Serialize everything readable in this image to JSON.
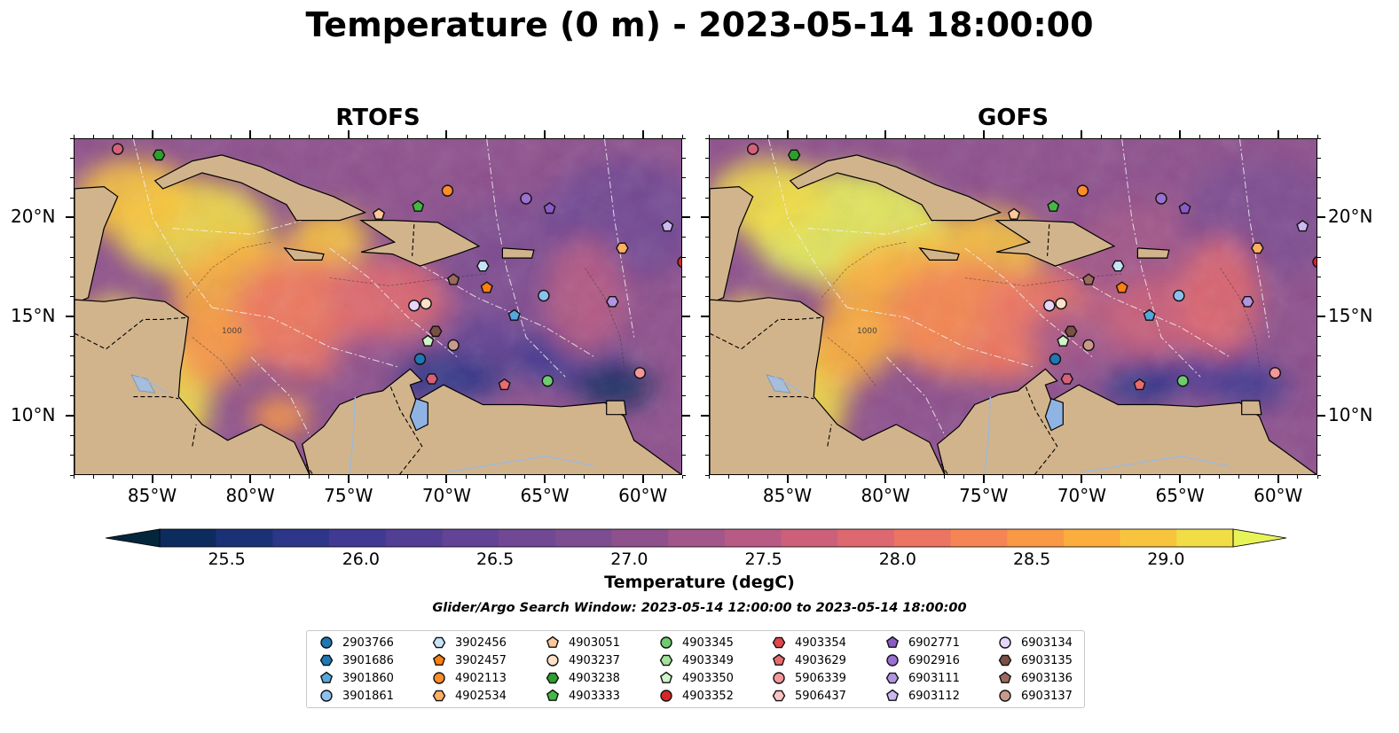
{
  "title": "Temperature (0 m) - 2023-05-14 18:00:00",
  "panels": [
    {
      "title": "RTOFS",
      "variant": "rtofs"
    },
    {
      "title": "GOFS",
      "variant": "gofs"
    }
  ],
  "map_extent": {
    "lon": [
      -89,
      -58
    ],
    "lat": [
      7,
      24
    ]
  },
  "lon_ticks": [
    {
      "lon": -85,
      "label": "85°W"
    },
    {
      "lon": -80,
      "label": "80°W"
    },
    {
      "lon": -75,
      "label": "75°W"
    },
    {
      "lon": -70,
      "label": "70°W"
    },
    {
      "lon": -65,
      "label": "65°W"
    },
    {
      "lon": -60,
      "label": "60°W"
    }
  ],
  "lat_ticks": [
    {
      "lat": 20,
      "label": "20°N"
    },
    {
      "lat": 15,
      "label": "15°N"
    },
    {
      "lat": 10,
      "label": "10°N"
    }
  ],
  "colorbar": {
    "label": "Temperature (degC)",
    "min": 25.25,
    "max": 29.25,
    "step": 0.25,
    "ticks": [
      "25.5",
      "26.0",
      "26.5",
      "27.0",
      "27.5",
      "28.0",
      "28.5",
      "29.0"
    ],
    "colors": [
      "#04263d",
      "#0d2c5e",
      "#1b3176",
      "#2d3689",
      "#403a92",
      "#533e95",
      "#634395",
      "#714893",
      "#7d4d91",
      "#8e518e",
      "#a3568a",
      "#b75b84",
      "#cc607a",
      "#de6870",
      "#ec7463",
      "#f58554",
      "#f99845",
      "#fbad3d",
      "#f8c43e",
      "#f1dd46",
      "#e8f35a"
    ]
  },
  "contour_label": "1000",
  "search_window": "Glider/Argo Search Window: 2023-05-14 12:00:00 to 2023-05-14 18:00:00",
  "floats": [
    {
      "id": "2903766",
      "marker": "circle",
      "color": "#1f77b4",
      "lon": -71.4,
      "lat": 12.9
    },
    {
      "id": "3901686",
      "marker": "hexagon",
      "color": "#1f77b4",
      "lon": null,
      "lat": null
    },
    {
      "id": "3901860",
      "marker": "pentagon",
      "color": "#56a8dc",
      "lon": -66.6,
      "lat": 15.1
    },
    {
      "id": "3901861",
      "marker": "circle",
      "color": "#8cc1ee",
      "lon": -65.1,
      "lat": 16.1
    },
    {
      "id": "3902456",
      "marker": "hexagon",
      "color": "#c6e3f8",
      "lon": -68.2,
      "lat": 17.6
    },
    {
      "id": "3902457",
      "marker": "pentagon",
      "color": "#ff7f0e",
      "lon": -68.0,
      "lat": 16.5
    },
    {
      "id": "4902113",
      "marker": "circle",
      "color": "#ff8c2a",
      "lon": -70.0,
      "lat": 21.4
    },
    {
      "id": "4902534",
      "marker": "hexagon",
      "color": "#ffae62",
      "lon": -61.1,
      "lat": 18.5
    },
    {
      "id": "4903051",
      "marker": "pentagon",
      "color": "#ffc89a",
      "lon": -73.5,
      "lat": 20.2
    },
    {
      "id": "4903237",
      "marker": "circle",
      "color": "#ffe1c6",
      "lon": null,
      "lat": null
    },
    {
      "id": "4903238",
      "marker": "hexagon",
      "color": "#2ca02c",
      "lon": -84.7,
      "lat": 23.2
    },
    {
      "id": "4903333",
      "marker": "pentagon",
      "color": "#44b844",
      "lon": -71.5,
      "lat": 20.6
    },
    {
      "id": "4903345",
      "marker": "circle",
      "color": "#6fcb6f",
      "lon": -64.9,
      "lat": 11.8
    },
    {
      "id": "4903349",
      "marker": "hexagon",
      "color": "#a1e39a",
      "lon": null,
      "lat": null
    },
    {
      "id": "4903350",
      "marker": "pentagon",
      "color": "#cdf5c8",
      "lon": -71.0,
      "lat": 13.8
    },
    {
      "id": "4903352",
      "marker": "circle",
      "color": "#d62728",
      "lon": -58.0,
      "lat": 17.8
    },
    {
      "id": "4903354",
      "marker": "hexagon",
      "color": "#e0474a",
      "lon": null,
      "lat": null
    },
    {
      "id": "4903629",
      "marker": "pentagon",
      "color": "#ea6b6e",
      "lon": -67.1,
      "lat": 11.6
    },
    {
      "id": "5906339",
      "marker": "circle",
      "color": "#f4979a",
      "lon": -60.2,
      "lat": 12.2
    },
    {
      "id": "5906437",
      "marker": "hexagon",
      "color": "#fdc4c5",
      "lon": null,
      "lat": null
    },
    {
      "id": "6902771",
      "marker": "pentagon",
      "color": "#8c5ac8",
      "lon": -64.8,
      "lat": 20.5
    },
    {
      "id": "6902916",
      "marker": "circle",
      "color": "#9a70d0",
      "lon": -66.0,
      "lat": 21.0
    },
    {
      "id": "6903111",
      "marker": "hexagon",
      "color": "#b394e0",
      "lon": -61.6,
      "lat": 15.8
    },
    {
      "id": "6903112",
      "marker": "pentagon",
      "color": "#cdb8f0",
      "lon": -58.8,
      "lat": 19.6
    },
    {
      "id": "6903134",
      "marker": "circle",
      "color": "#e8d5fa",
      "lon": -71.7,
      "lat": 15.6
    },
    {
      "id": "6903135",
      "marker": "hexagon",
      "color": "#7a4f44",
      "lon": -70.6,
      "lat": 14.3
    },
    {
      "id": "6903136",
      "marker": "pentagon",
      "color": "#9b6a5e",
      "lon": -69.7,
      "lat": 16.9
    },
    {
      "id": "6903137",
      "marker": "circle",
      "color": "#c99a8c",
      "lon": -69.7,
      "lat": 13.6
    }
  ],
  "extra_markers": [
    {
      "marker": "circle",
      "color": "#d6607a",
      "lon": -86.8,
      "lat": 23.5
    },
    {
      "marker": "circle",
      "color": "#ffe1c6",
      "lon": -71.1,
      "lat": 15.7
    },
    {
      "marker": "hexagon",
      "color": "#d6607a",
      "lon": -70.8,
      "lat": 11.9
    }
  ]
}
